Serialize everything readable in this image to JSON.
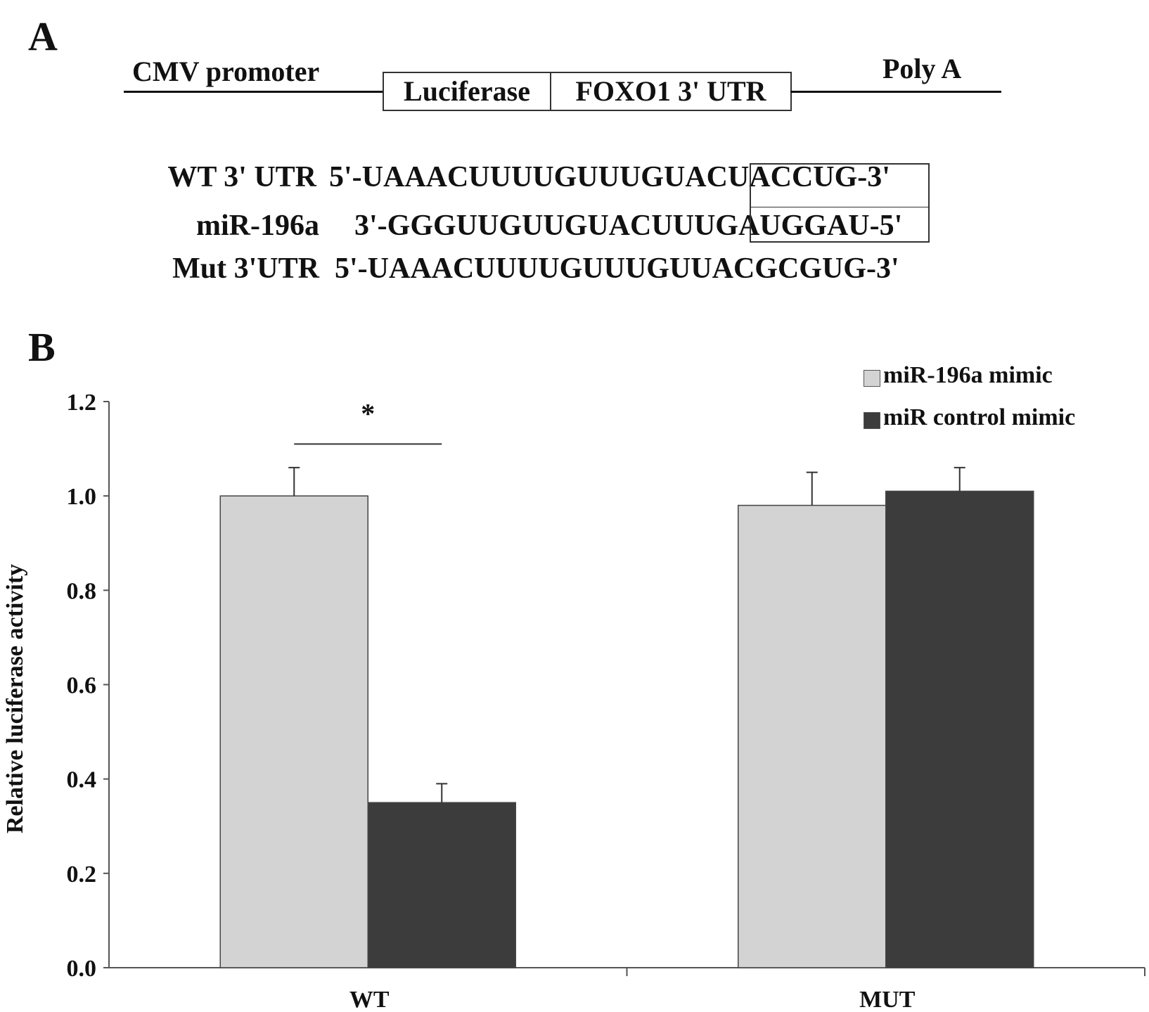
{
  "panels": {
    "a": "A",
    "b": "B"
  },
  "construct": {
    "promoter": "CMV promoter",
    "box1": "Luciferase",
    "box2": "FOXO1 3' UTR",
    "tail": "Poly A"
  },
  "sequences": [
    {
      "name": "WT 3' UTR",
      "seq": "5'-UAAACUUUUGUUUGUACUACCUG-3'"
    },
    {
      "name": "miR-196a",
      "seq": "3'-GGGUUGUUGUACUUUGAUGGAU-5'"
    },
    {
      "name": "Mut 3'UTR",
      "seq": "5'-UAAACUUUUGUUUGUUACGCGUG-3'"
    }
  ],
  "chart_data": {
    "type": "bar",
    "categories": [
      "WT",
      "MUT"
    ],
    "series": [
      {
        "name": "miR-196a mimic",
        "values": [
          1.0,
          0.98
        ],
        "errors": [
          0.06,
          0.07
        ],
        "color": "#d3d3d3"
      },
      {
        "name": "miR control mimic",
        "values": [
          0.35,
          1.01
        ],
        "errors": [
          0.04,
          0.05
        ],
        "color": "#3c3c3c"
      }
    ],
    "title": "",
    "xlabel": "",
    "ylabel": "Relative luciferase activity",
    "ylim": [
      0,
      1.2
    ],
    "yticks": [
      "0.0",
      "0.2",
      "0.4",
      "0.6",
      "0.8",
      "1.0",
      "1.2"
    ],
    "significance": {
      "category": "WT",
      "label": "*"
    },
    "legend_position": "top-right",
    "grid": false
  }
}
